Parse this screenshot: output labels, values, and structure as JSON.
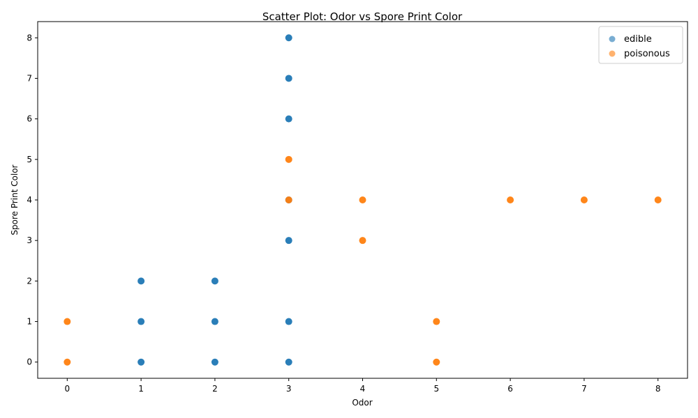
{
  "chart_data": {
    "type": "scatter",
    "title": "Scatter Plot: Odor vs Spore Print Color",
    "xlabel": "Odor",
    "ylabel": "Spore Print Color",
    "xlim": [
      -0.4,
      8.4
    ],
    "ylim": [
      -0.4,
      8.4
    ],
    "xticks": [
      "0",
      "1",
      "2",
      "3",
      "4",
      "5",
      "6",
      "7",
      "8"
    ],
    "yticks": [
      "0",
      "1",
      "2",
      "3",
      "4",
      "5",
      "6",
      "7",
      "8"
    ],
    "grid": false,
    "legend_position": "top-right",
    "series": [
      {
        "name": "edible",
        "color": "#1f77b4",
        "points": [
          [
            1,
            0
          ],
          [
            1,
            1
          ],
          [
            1,
            2
          ],
          [
            2,
            0
          ],
          [
            2,
            1
          ],
          [
            2,
            2
          ],
          [
            3,
            0
          ],
          [
            3,
            1
          ],
          [
            3,
            3
          ],
          [
            3,
            4
          ],
          [
            3,
            6
          ],
          [
            3,
            7
          ],
          [
            3,
            8
          ]
        ]
      },
      {
        "name": "poisonous",
        "color": "#ff7f0e",
        "points": [
          [
            0,
            0
          ],
          [
            0,
            1
          ],
          [
            3,
            4
          ],
          [
            3,
            5
          ],
          [
            4,
            3
          ],
          [
            4,
            4
          ],
          [
            5,
            0
          ],
          [
            5,
            1
          ],
          [
            6,
            4
          ],
          [
            7,
            4
          ],
          [
            8,
            4
          ]
        ]
      }
    ]
  }
}
